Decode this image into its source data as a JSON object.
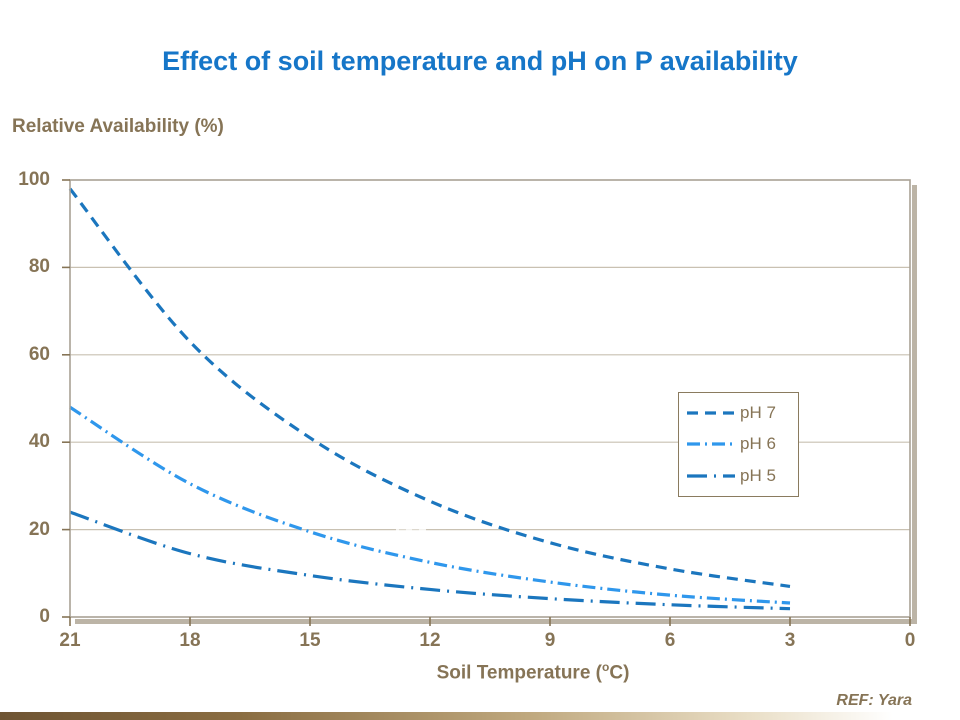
{
  "title": "Effect of soil temperature and pH on P availability",
  "y_axis": {
    "title": "Relative Availability (%)"
  },
  "x_axis": {
    "label_prefix": "Soil Temperature (",
    "unit_sup": "o",
    "label_suffix": "C)"
  },
  "reference": "REF: Yara",
  "colors": {
    "title_blue": "#1676C8",
    "text_brown": "#867456",
    "ph7_line": "#1B76BE",
    "ph6_line": "#2F97EC",
    "ph5_line": "#1B76BE",
    "gridline": "#C9C1B2",
    "plot_border": "#A9A195",
    "plot_shadow": "#BCB4A6"
  },
  "chart_data": {
    "type": "line",
    "title": "Effect of soil temperature and pH on P availability",
    "xlabel": "Soil Temperature (°C)",
    "ylabel": "Relative Availability (%)",
    "x": [
      21,
      18,
      15,
      12,
      9,
      6,
      3
    ],
    "x_axis_reversed": true,
    "x_ticks": [
      21,
      18,
      15,
      12,
      9,
      6,
      3,
      0
    ],
    "y_ticks": [
      0,
      20,
      40,
      60,
      80,
      100
    ],
    "ylim": [
      0,
      100
    ],
    "xlim": [
      21,
      0
    ],
    "grid": "horizontal",
    "legend_position": "inside-right-middle",
    "series": [
      {
        "name": "pH 7",
        "values": [
          98,
          63,
          41,
          26.5,
          17,
          11,
          7
        ],
        "color": "#1B76BE",
        "dash": "11 7"
      },
      {
        "name": "pH 6",
        "values": [
          48,
          30.5,
          19.5,
          12.5,
          8,
          5,
          3.2
        ],
        "color": "#2F97EC",
        "dash": "13 5 2 5"
      },
      {
        "name": "pH 5",
        "values": [
          24,
          14.5,
          9.5,
          6.3,
          4.2,
          2.8,
          1.9
        ],
        "color": "#1B76BE",
        "dash": "20 7 2 7"
      }
    ]
  }
}
